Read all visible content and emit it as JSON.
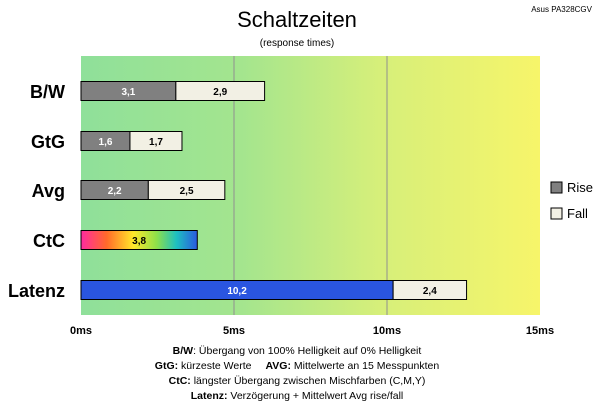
{
  "chart_data": {
    "type": "bar",
    "orientation": "horizontal",
    "stacked": true,
    "title": "Schaltzeiten",
    "subtitle": "(response times)",
    "corner_label": "Asus PA328CGV",
    "categories": [
      "B/W",
      "GtG",
      "Avg",
      "CtC",
      "Latenz"
    ],
    "series": [
      {
        "name": "Rise",
        "values": [
          3.1,
          1.6,
          2.2,
          3.8,
          10.2
        ],
        "labels": [
          "3,1",
          "1,6",
          "2,2",
          "3,8",
          "10,2"
        ]
      },
      {
        "name": "Fall",
        "values": [
          2.9,
          1.7,
          2.5,
          null,
          2.4
        ],
        "labels": [
          "2,9",
          "1,7",
          "2,5",
          null,
          "2,4"
        ]
      }
    ],
    "xlim": [
      0,
      15
    ],
    "xticks": [
      0,
      5,
      10,
      15
    ],
    "xtick_labels": [
      "0ms",
      "5ms",
      "10ms",
      "15ms"
    ],
    "grid": true,
    "legend_position": "right",
    "colors": {
      "rise": "#808080",
      "fall": "#f2f0e4",
      "latenz": "#2a55e0",
      "bar_border": "#000000",
      "background_left": "#8fe09a",
      "background_right": "#f7f56a",
      "grid": "#909090"
    },
    "ctc_fill": "rainbow-gradient"
  },
  "footer": {
    "line1_bold": "B/W",
    "line1_text": ":  Übergang von 100% Helligkeit auf 0% Helligkeit",
    "line2_bold1": "GtG:",
    "line2_text1": " kürzeste  Werte",
    "line2_bold2": "AVG:",
    "line2_text2": " Mittelwerte  an 15 Messpunkten",
    "line3_bold": "CtC:",
    "line3_text": " längster Übergang  zwischen Mischfarben  (C,M,Y)",
    "line4_bold": "Latenz:",
    "line4_text": " Verzögerung  + Mittelwert Avg rise/fall"
  }
}
